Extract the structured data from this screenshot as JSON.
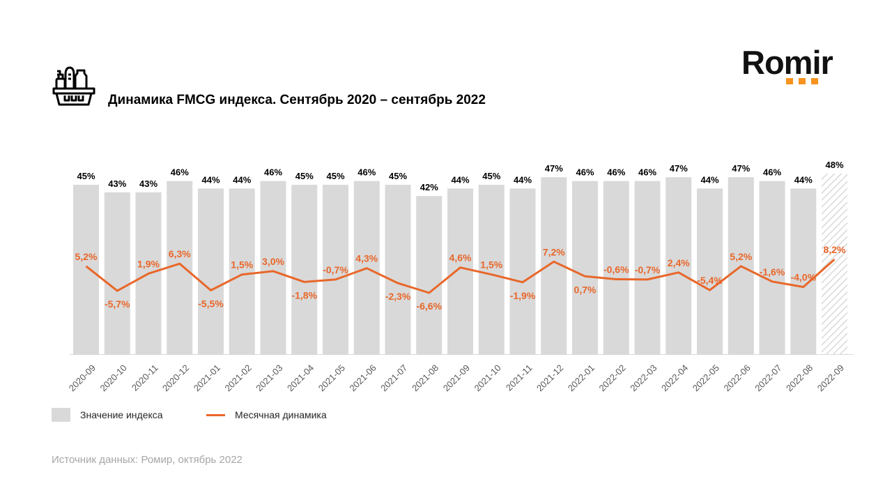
{
  "header": {
    "title": "Динамика FMCG индекса. Сентябрь 2020 – сентябрь 2022",
    "icon": "shopping-basket-icon",
    "logo_text": "Romir",
    "logo_accent_color": "#f7931e"
  },
  "legend": {
    "index_label": "Значение индекса",
    "dynamics_label": "Месячная динамика"
  },
  "source": "Источник данных: Ромир, октябрь 2022",
  "colors": {
    "bar": "#d9d9d9",
    "line": "#e8672a",
    "bar_label": "#000000",
    "line_label": "#e8672a"
  },
  "chart_data": {
    "type": "bar",
    "title": "Динамика FMCG индекса. Сентябрь 2020 – сентябрь 2022",
    "xlabel": "",
    "ylabel": "",
    "categories": [
      "2020-09",
      "2020-10",
      "2020-11",
      "2020-12",
      "2021-01",
      "2021-02",
      "2021-03",
      "2021-04",
      "2021-05",
      "2021-06",
      "2021-07",
      "2021-08",
      "2021-09",
      "2021-10",
      "2021-11",
      "2021-12",
      "2022-01",
      "2022-02",
      "2022-03",
      "2022-04",
      "2022-05",
      "2022-06",
      "2022-07",
      "2022-08",
      "2022-09"
    ],
    "series": [
      {
        "name": "Значение индекса",
        "type": "bar",
        "values": [
          45,
          43,
          43,
          46,
          44,
          44,
          46,
          45,
          45,
          46,
          45,
          42,
          44,
          45,
          44,
          47,
          46,
          46,
          46,
          47,
          44,
          47,
          46,
          44,
          48
        ],
        "labels": [
          "45%",
          "43%",
          "43%",
          "46%",
          "44%",
          "44%",
          "46%",
          "45%",
          "45%",
          "46%",
          "45%",
          "42%",
          "44%",
          "45%",
          "44%",
          "47%",
          "46%",
          "46%",
          "46%",
          "47%",
          "44%",
          "47%",
          "46%",
          "44%",
          "48%"
        ],
        "highlighted_last": true
      },
      {
        "name": "Месячная динамика",
        "type": "line",
        "values": [
          5.2,
          -5.7,
          1.9,
          6.3,
          -5.5,
          1.5,
          3.0,
          -1.8,
          -0.7,
          4.3,
          -2.3,
          -6.6,
          4.6,
          1.5,
          -1.9,
          7.2,
          0.7,
          -0.6,
          -0.7,
          2.4,
          -5.4,
          5.2,
          -1.6,
          -4.0,
          8.2
        ],
        "labels": [
          "5,2%",
          "-5,7%",
          "1,9%",
          "6,3%",
          "-5,5%",
          "1,5%",
          "3,0%",
          "-1,8%",
          "-0,7%",
          "4,3%",
          "-2,3%",
          "-6,6%",
          "4,6%",
          "1,5%",
          "-1,9%",
          "7,2%",
          "0,7%",
          "-0,6%",
          "-0,7%",
          "2,4%",
          "-5,4%",
          "5,2%",
          "-1,6%",
          "-4,0%",
          "8,2%"
        ]
      }
    ],
    "grid": false,
    "legend_position": "bottom-left"
  }
}
